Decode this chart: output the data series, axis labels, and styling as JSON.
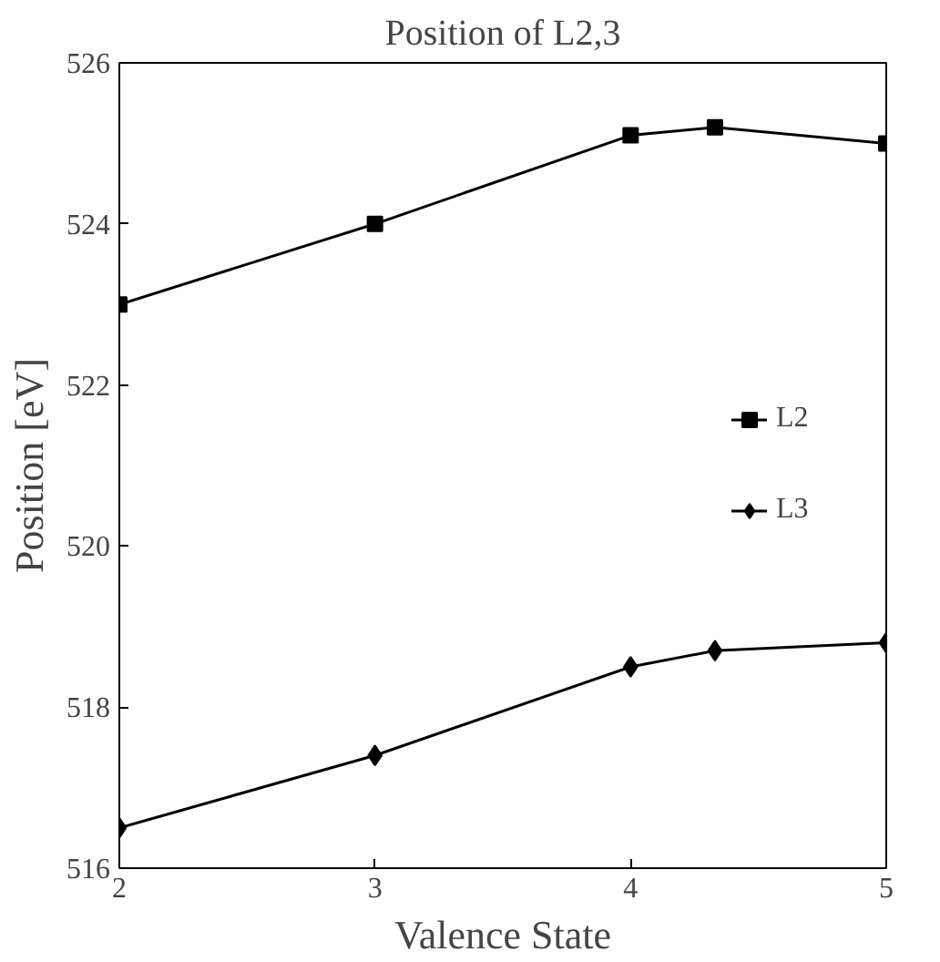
{
  "chart_data": {
    "type": "line",
    "title": "Position of L2,3",
    "xlabel": "Valence State",
    "ylabel": "Position [eV]",
    "x": [
      2,
      3,
      4,
      4.33,
      5
    ],
    "series": [
      {
        "name": "L2",
        "color": "#000000",
        "marker": "square",
        "values": [
          523.0,
          524.0,
          525.1,
          525.2,
          525.0
        ]
      },
      {
        "name": "L3",
        "color": "#000000",
        "marker": "diamond",
        "values": [
          516.5,
          517.4,
          518.5,
          518.7,
          518.8
        ]
      }
    ],
    "xlim": [
      2,
      5
    ],
    "xticks": [
      2,
      3,
      4,
      5
    ],
    "ylim": [
      516,
      526
    ],
    "yticks": [
      516,
      518,
      520,
      522,
      524,
      526
    ],
    "grid": false,
    "legend": "right",
    "line_style": "solid"
  }
}
